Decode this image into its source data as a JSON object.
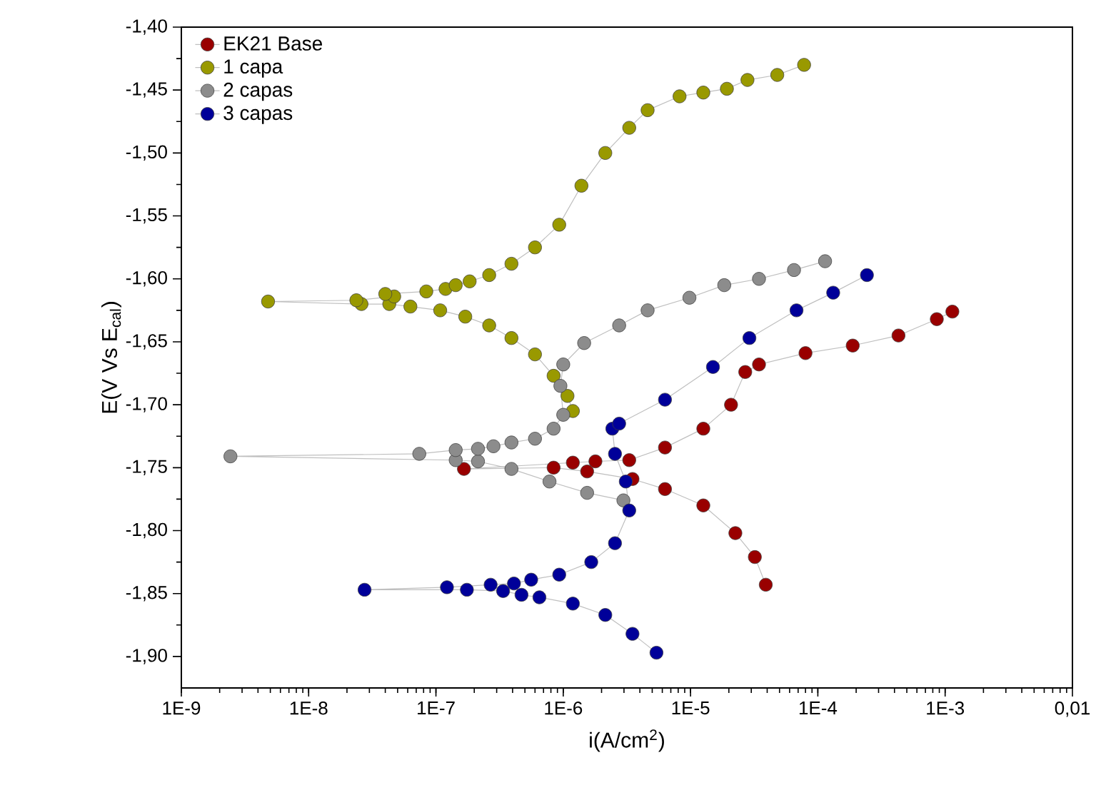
{
  "chart_data": {
    "type": "line",
    "xlabel": "i(A/cm$^{2}$)",
    "ylabel": "E(V Vs E$_{cal}$)",
    "log": "x",
    "marker": "circle",
    "line_style": "solid",
    "legend": "top left",
    "grid": false,
    "xlim": [
      1e-09,
      0.01
    ],
    "xticks": [
      {
        "value": 1e-09,
        "label": "1E-9"
      },
      {
        "value": 1e-08,
        "label": "1E-8"
      },
      {
        "value": 1e-07,
        "label": "1E-7"
      },
      {
        "value": 1e-06,
        "label": "1E-6"
      },
      {
        "value": 1e-05,
        "label": "1E-5"
      },
      {
        "value": 0.0001,
        "label": "1E-4"
      },
      {
        "value": 0.001,
        "label": "1E-3"
      },
      {
        "value": 0.01,
        "label": "0,01"
      }
    ],
    "ylim": [
      -1.925,
      -1.4
    ],
    "yticks": [
      {
        "value": -1.4,
        "label": "-1,40"
      },
      {
        "value": -1.45,
        "label": "-1,45"
      },
      {
        "value": -1.5,
        "label": "-1,50"
      },
      {
        "value": -1.55,
        "label": "-1,55"
      },
      {
        "value": -1.6,
        "label": "-1,60"
      },
      {
        "value": -1.65,
        "label": "-1,65"
      },
      {
        "value": -1.7,
        "label": "-1,70"
      },
      {
        "value": -1.75,
        "label": "-1,75"
      },
      {
        "value": -1.8,
        "label": "-1,80"
      },
      {
        "value": -1.85,
        "label": "-1,85"
      },
      {
        "value": -1.9,
        "label": "-1,90"
      }
    ],
    "series": [
      {
        "name": "EK21 Base",
        "color": "#990000",
        "x": [
          3.9e-05,
          3.2e-05,
          2.25e-05,
          1.26e-05,
          6.3e-06,
          3.5e-06,
          1.54e-06,
          8.4e-07,
          1.66e-07,
          1.19e-06,
          1.79e-06,
          3.3e-06,
          6.3e-06,
          1.26e-05,
          2.08e-05,
          2.69e-05,
          3.45e-05,
          8e-05,
          0.000188,
          0.00043,
          0.00086,
          0.00114
        ],
        "values": [
          -1.843,
          -1.821,
          -1.802,
          -1.78,
          -1.767,
          -1.759,
          -1.753,
          -1.75,
          -1.751,
          -1.746,
          -1.745,
          -1.744,
          -1.734,
          -1.719,
          -1.7,
          -1.674,
          -1.668,
          -1.659,
          -1.653,
          -1.645,
          -1.632,
          -1.626
        ]
      },
      {
        "name": "1 capa",
        "color": "#999900",
        "x": [
          1.19e-06,
          1.08e-06,
          8.4e-07,
          6e-07,
          3.92e-07,
          2.62e-07,
          1.7e-07,
          1.08e-07,
          6.3e-08,
          4.3e-08,
          2.6e-08,
          4.8e-09,
          2.37e-08,
          4.7e-08,
          4e-08,
          8.4e-08,
          1.19e-07,
          1.43e-07,
          1.84e-07,
          2.62e-07,
          3.92e-07,
          6e-07,
          9.3e-07,
          1.39e-06,
          2.14e-06,
          3.3e-06,
          4.6e-06,
          8.2e-06,
          1.26e-05,
          1.93e-05,
          2.8e-05,
          4.8e-05,
          7.8e-05
        ],
        "values": [
          -1.705,
          -1.693,
          -1.677,
          -1.66,
          -1.647,
          -1.637,
          -1.63,
          -1.625,
          -1.622,
          -1.62,
          -1.62,
          -1.618,
          -1.617,
          -1.614,
          -1.612,
          -1.61,
          -1.608,
          -1.605,
          -1.602,
          -1.597,
          -1.588,
          -1.575,
          -1.557,
          -1.526,
          -1.5,
          -1.48,
          -1.466,
          -1.455,
          -1.452,
          -1.449,
          -1.442,
          -1.438,
          -1.43
        ]
      },
      {
        "name": "2 capas",
        "color": "#8c8c8c",
        "x": [
          2.97e-06,
          1.54e-06,
          7.8e-07,
          3.92e-07,
          2.14e-07,
          1.43e-07,
          2.43e-09,
          7.4e-08,
          1.43e-07,
          2.14e-07,
          2.83e-07,
          3.92e-07,
          6e-07,
          8.4e-07,
          1e-06,
          9.5e-07,
          1e-06,
          1.46e-06,
          2.75e-06,
          4.6e-06,
          9.8e-06,
          1.84e-05,
          3.45e-05,
          6.5e-05,
          0.000114
        ],
        "values": [
          -1.776,
          -1.77,
          -1.761,
          -1.751,
          -1.745,
          -1.744,
          -1.741,
          -1.739,
          -1.736,
          -1.735,
          -1.733,
          -1.73,
          -1.727,
          -1.719,
          -1.708,
          -1.685,
          -1.668,
          -1.651,
          -1.637,
          -1.625,
          -1.615,
          -1.605,
          -1.6,
          -1.593,
          -1.586
        ]
      },
      {
        "name": "3 capas",
        "color": "#000099",
        "x": [
          5.4e-06,
          3.5e-06,
          2.14e-06,
          1.19e-06,
          6.5e-07,
          4.7e-07,
          3.37e-07,
          1.75e-07,
          2.75e-08,
          1.22e-07,
          2.69e-07,
          4.1e-07,
          5.6e-07,
          9.3e-07,
          1.66e-06,
          2.55e-06,
          3.3e-06,
          3.1e-06,
          2.55e-06,
          2.43e-06,
          2.75e-06,
          6.3e-06,
          1.5e-05,
          2.9e-05,
          6.8e-05,
          0.000132,
          0.000243
        ],
        "values": [
          -1.897,
          -1.882,
          -1.867,
          -1.858,
          -1.853,
          -1.851,
          -1.848,
          -1.847,
          -1.847,
          -1.845,
          -1.843,
          -1.842,
          -1.839,
          -1.835,
          -1.825,
          -1.81,
          -1.784,
          -1.761,
          -1.739,
          -1.719,
          -1.715,
          -1.696,
          -1.67,
          -1.647,
          -1.625,
          -1.611,
          -1.597
        ]
      }
    ]
  }
}
